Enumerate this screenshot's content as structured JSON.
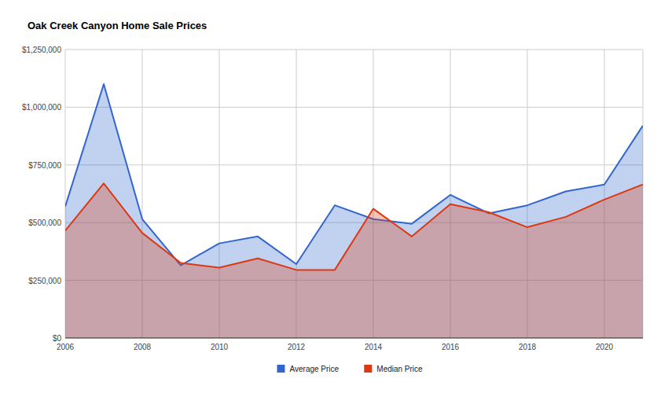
{
  "chart_data": {
    "type": "area",
    "title": "Oak Creek Canyon Home Sale Prices",
    "x": [
      2006,
      2007,
      2008,
      2009,
      2010,
      2011,
      2012,
      2013,
      2014,
      2015,
      2016,
      2017,
      2018,
      2019,
      2020,
      2021
    ],
    "series": [
      {
        "name": "Average Price",
        "color": "#3366cc",
        "values": [
          570000,
          1100000,
          515000,
          315000,
          410000,
          440000,
          320000,
          575000,
          515000,
          495000,
          620000,
          540000,
          575000,
          635000,
          665000,
          920000
        ]
      },
      {
        "name": "Median Price",
        "color": "#dc3912",
        "values": [
          465000,
          670000,
          455000,
          325000,
          305000,
          345000,
          295000,
          295000,
          560000,
          440000,
          580000,
          545000,
          480000,
          525000,
          600000,
          665000
        ]
      }
    ],
    "xlim": [
      2006,
      2021
    ],
    "xticks": [
      2006,
      2008,
      2010,
      2012,
      2014,
      2016,
      2018,
      2020
    ],
    "ylim": [
      0,
      1250000
    ],
    "yticks": [
      {
        "value": 0,
        "label": "$0"
      },
      {
        "value": 250000,
        "label": "$250,000"
      },
      {
        "value": 500000,
        "label": "$500,000"
      },
      {
        "value": 750000,
        "label": "$750,000"
      },
      {
        "value": 1000000,
        "label": "$1,000,000"
      },
      {
        "value": 1250000,
        "label": "$1,250,000"
      }
    ],
    "grid": true,
    "legend": "bottom"
  }
}
